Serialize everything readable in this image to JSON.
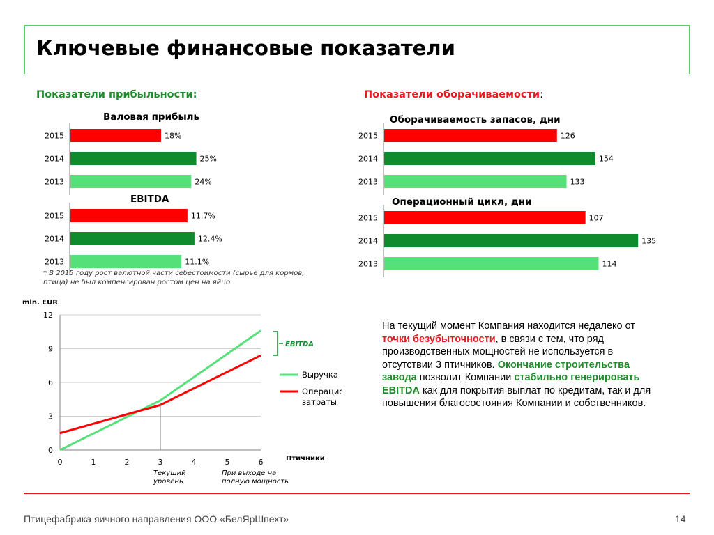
{
  "title": "Ключевые финансовые показатели",
  "profitability": {
    "section_title": "Показатели прибыльности:",
    "gross_profit_title": "Валовая прибыль",
    "ebitda_title": "EBITDA",
    "footnote_line1": "* В 2015 году рост валютной части себестоимости (сырье для кормов,",
    "footnote_line2": "птица) не был компенсирован ростом цен на яйцо."
  },
  "turnover": {
    "section_title": "Показатели оборачиваемости",
    "section_colon": ":",
    "inventory_title": "Оборачиваемость запасов, дни",
    "cycle_title": "Операционный цикл, дни"
  },
  "colors": {
    "red": "#ff0000",
    "dark_green": "#0f8a2c",
    "light_green": "#56e07a",
    "axis": "#808080"
  },
  "chart_data": [
    {
      "type": "bar",
      "title": "Валовая прибыль",
      "categories": [
        "2015",
        "2014",
        "2013"
      ],
      "values": [
        18,
        25,
        24
      ],
      "labels": [
        "18%",
        "25%",
        "24%"
      ],
      "xlim": [
        0,
        45
      ]
    },
    {
      "type": "bar",
      "title": "EBITDA",
      "categories": [
        "2015",
        "2014",
        "2013"
      ],
      "values": [
        11.7,
        12.4,
        11.1
      ],
      "labels": [
        "11.7%",
        "12.4%",
        "11.1%"
      ],
      "xlim": [
        0,
        23
      ]
    },
    {
      "type": "bar",
      "title": "Оборачиваемость запасов, дни",
      "categories": [
        "2015",
        "2014",
        "2013"
      ],
      "values": [
        126,
        154,
        133
      ],
      "labels": [
        "126",
        "154",
        "133"
      ],
      "xlim": [
        0,
        300
      ]
    },
    {
      "type": "bar",
      "title": "Операционный цикл, дни",
      "categories": [
        "2015",
        "2014",
        "2013"
      ],
      "values": [
        107,
        135,
        114
      ],
      "labels": [
        "107",
        "135",
        "114"
      ],
      "xlim": [
        0,
        215
      ]
    },
    {
      "type": "line",
      "ylabel": "mln. EUR",
      "xlabel": "Птичники",
      "xlim": [
        0,
        6
      ],
      "ylim": [
        0,
        12
      ],
      "x_ticks": [
        "0",
        "1",
        "2",
        "3",
        "4",
        "5",
        "6"
      ],
      "y_ticks": [
        "0",
        "3",
        "6",
        "9",
        "12"
      ],
      "series": [
        {
          "name": "Выручка",
          "x": [
            0,
            3,
            6
          ],
          "y": [
            0,
            4.4,
            10.6
          ]
        },
        {
          "name": "Операционные затраты",
          "x": [
            0,
            3,
            6
          ],
          "y": [
            1.5,
            4,
            8.4
          ]
        }
      ],
      "annotations": {
        "ebitda": "EBITDA",
        "current_level_line1": "Текущий",
        "current_level_line2": "уровень",
        "full_capacity_line1": "При выходе на",
        "full_capacity_line2": "полную мощность"
      },
      "legend_position": "right"
    }
  ],
  "text_block": {
    "p1": "На текущий момент Компания находится недалеко от ",
    "p1_hl": "точки безубыточности",
    "p2": ", в связи с тем, что ряд производственных мощностей не используется в отсутствии 3 птичников. ",
    "p2_hl": "Окончание строительства завода",
    "p3": " позволит Компании ",
    "p3_hl": "стабильно генерировать EBITDA",
    "p4": " как для покрытия выплат по кредитам, так и для повышения благосостояния Компании и собственников."
  },
  "footer": {
    "company": "Птицефабрика яичного направления ООО «БелЯрШпехт»",
    "page": "14"
  }
}
